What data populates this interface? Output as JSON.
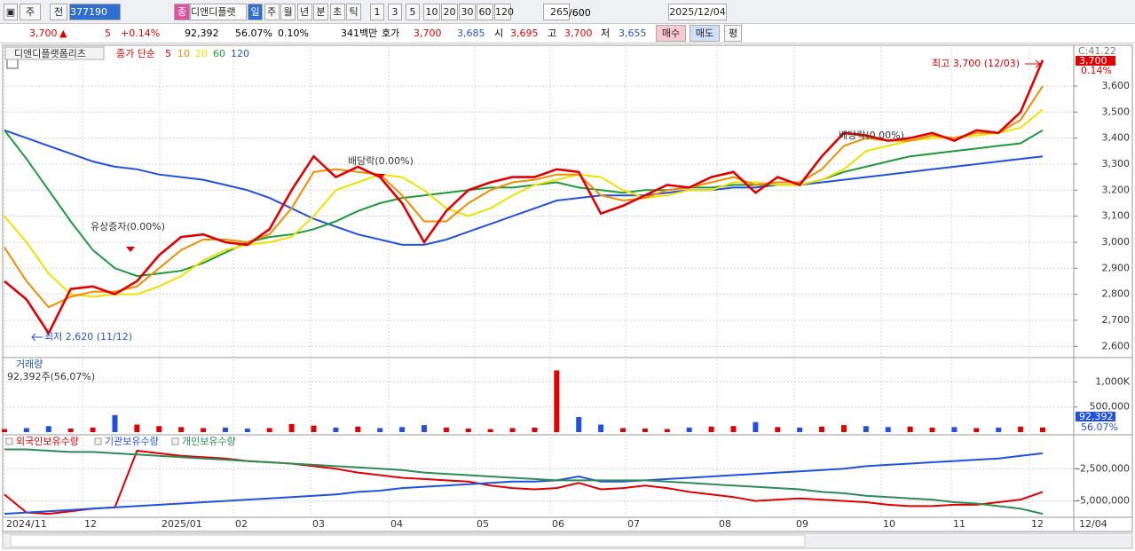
{
  "toolbar": {
    "market": "주",
    "prev": "전",
    "code": "377190",
    "badge": "종",
    "name": "디앤디플랫",
    "intervals": [
      "일",
      "주",
      "월",
      "년",
      "분",
      "초",
      "틱"
    ],
    "counts": [
      "1",
      "3",
      "5",
      "10",
      "20",
      "30",
      "60",
      "120"
    ],
    "bars": "265",
    "bars_max": "/600",
    "date": "2025/12/04"
  },
  "quote": {
    "price": "3,700",
    "arrow": "▲",
    "change": "5",
    "pct": "+0.14%",
    "volume": "92,392",
    "vol_ratio": "56.07%",
    "turnover": "0.10%",
    "amount": "341백만",
    "hoga": "호가",
    "ask": "3,700",
    "bid": "3,685",
    "open_label": "시",
    "open": "3,695",
    "high_label": "고",
    "high": "3,700",
    "low_label": "저",
    "low": "3,655",
    "buy": "매수",
    "sell": "매도",
    "avg": "평"
  },
  "chart_data": [
    {
      "type": "line",
      "title": "디앤디플랫폼리츠",
      "legend_prefix": "종가 단순",
      "corner_label": "C:41.22",
      "last_label": "3,700",
      "change_label": "0.14%",
      "annotations": [
        "최고 3,700 (12/03)",
        "최저 2,620 (11/12)",
        "유상증자(0.00%)",
        "배당락(0.00%)",
        "배당락(0.00%)"
      ],
      "ylim": [
        2560,
        3750
      ],
      "yticks": [
        {
          "value": 2600,
          "label": "2,600"
        },
        {
          "value": 2700,
          "label": "2,700"
        },
        {
          "value": 2800,
          "label": "2,800"
        },
        {
          "value": 2900,
          "label": "2,900"
        },
        {
          "value": 3000,
          "label": "3,000"
        },
        {
          "value": 3100,
          "label": "3,100"
        },
        {
          "value": 3200,
          "label": "3,200"
        },
        {
          "value": 3300,
          "label": "3,300"
        },
        {
          "value": 3400,
          "label": "3,400"
        },
        {
          "value": 3500,
          "label": "3,500"
        },
        {
          "value": 3600,
          "label": "3,600"
        }
      ],
      "series": [
        {
          "name": "120",
          "color": "#2050e0",
          "values": [
            3430,
            3400,
            3370,
            3340,
            3310,
            3290,
            3280,
            3260,
            3250,
            3240,
            3220,
            3200,
            3170,
            3130,
            3090,
            3060,
            3030,
            3010,
            2990,
            2990,
            3010,
            3040,
            3070,
            3100,
            3130,
            3160,
            3170,
            3180,
            3180,
            3180,
            3190,
            3200,
            3200,
            3210,
            3210,
            3220,
            3220,
            3230,
            3240,
            3250,
            3260,
            3270,
            3280,
            3290,
            3300,
            3310,
            3320,
            3330
          ]
        },
        {
          "name": "60",
          "color": "#1f9a3a",
          "values": [
            3430,
            3320,
            3200,
            3080,
            2970,
            2900,
            2870,
            2880,
            2890,
            2920,
            2960,
            3000,
            3020,
            3030,
            3050,
            3080,
            3120,
            3150,
            3170,
            3180,
            3190,
            3200,
            3210,
            3210,
            3220,
            3230,
            3210,
            3200,
            3190,
            3200,
            3200,
            3210,
            3210,
            3220,
            3220,
            3220,
            3220,
            3240,
            3270,
            3290,
            3310,
            3330,
            3340,
            3350,
            3360,
            3370,
            3380,
            3430
          ]
        },
        {
          "name": "20",
          "color": "#f0e000",
          "values": [
            3100,
            3000,
            2880,
            2800,
            2790,
            2800,
            2800,
            2830,
            2870,
            2930,
            2970,
            2990,
            3000,
            3020,
            3100,
            3200,
            3230,
            3260,
            3250,
            3200,
            3130,
            3100,
            3130,
            3180,
            3220,
            3240,
            3260,
            3250,
            3200,
            3170,
            3180,
            3200,
            3200,
            3230,
            3230,
            3220,
            3220,
            3240,
            3280,
            3350,
            3370,
            3390,
            3400,
            3400,
            3410,
            3420,
            3440,
            3510
          ]
        },
        {
          "name": "10",
          "color": "#f08c00",
          "values": [
            2980,
            2850,
            2750,
            2790,
            2810,
            2810,
            2830,
            2900,
            2970,
            3010,
            3010,
            3000,
            3030,
            3130,
            3270,
            3280,
            3270,
            3260,
            3180,
            3080,
            3080,
            3150,
            3200,
            3230,
            3240,
            3260,
            3260,
            3180,
            3160,
            3170,
            3200,
            3210,
            3230,
            3250,
            3220,
            3230,
            3230,
            3280,
            3370,
            3400,
            3390,
            3390,
            3410,
            3400,
            3420,
            3420,
            3470,
            3600
          ]
        },
        {
          "name": "5",
          "color": "#e00000",
          "values": [
            2850,
            2780,
            2650,
            2820,
            2830,
            2800,
            2850,
            2950,
            3020,
            3030,
            3000,
            2990,
            3050,
            3200,
            3330,
            3250,
            3290,
            3250,
            3150,
            3000,
            3120,
            3200,
            3230,
            3250,
            3250,
            3280,
            3270,
            3110,
            3140,
            3180,
            3220,
            3210,
            3250,
            3270,
            3190,
            3250,
            3220,
            3330,
            3420,
            3410,
            3390,
            3400,
            3420,
            3390,
            3430,
            3420,
            3500,
            3700
          ]
        }
      ]
    },
    {
      "type": "bar",
      "title": "거래량",
      "subtitle": "92,392주(56,07%)",
      "last_label": "92,392",
      "ratio_label": "56.07%",
      "ylim": [
        0,
        1450000
      ],
      "yticks": [
        {
          "value": 500000,
          "label": "500,000"
        },
        {
          "value": 1000000,
          "label": "1,000K"
        }
      ],
      "values": [
        60000,
        80000,
        120000,
        70000,
        90000,
        340000,
        150000,
        120000,
        100000,
        80000,
        90000,
        70000,
        80000,
        160000,
        130000,
        90000,
        110000,
        80000,
        100000,
        140000,
        90000,
        70000,
        60000,
        80000,
        90000,
        1230000,
        300000,
        150000,
        80000,
        70000,
        60000,
        90000,
        110000,
        120000,
        200000,
        100000,
        90000,
        110000,
        140000,
        120000,
        100000,
        110000,
        90000,
        100000,
        80000,
        90000,
        110000,
        92392
      ]
    },
    {
      "type": "line",
      "ylim": [
        -6200000,
        0
      ],
      "yticks": [
        {
          "value": -5000000,
          "label": "-5,000,000"
        },
        {
          "value": -2500000,
          "label": "-2,500,000"
        }
      ],
      "series": [
        {
          "name": "외국인보유수량",
          "color": "#e00000",
          "values": [
            -4500000,
            -5900000,
            -6000000,
            -5800000,
            -5600000,
            -5500000,
            -1100000,
            -1300000,
            -1500000,
            -1600000,
            -1700000,
            -1900000,
            -2000000,
            -2100000,
            -2300000,
            -2500000,
            -2800000,
            -3000000,
            -3200000,
            -3300000,
            -3400000,
            -3500000,
            -3800000,
            -4000000,
            -4100000,
            -4000000,
            -3600000,
            -4100000,
            -4000000,
            -3800000,
            -4000000,
            -4300000,
            -4500000,
            -4700000,
            -5000000,
            -4900000,
            -4800000,
            -4900000,
            -5000000,
            -5100000,
            -5300000,
            -5400000,
            -5400000,
            -5300000,
            -5300000,
            -5100000,
            -4900000,
            -4300000
          ]
        },
        {
          "name": "기관보유수량",
          "color": "#2050e0",
          "values": [
            -6000000,
            -5900000,
            -5800000,
            -5700000,
            -5600000,
            -5500000,
            -5400000,
            -5300000,
            -5200000,
            -5100000,
            -5000000,
            -4900000,
            -4800000,
            -4700000,
            -4600000,
            -4500000,
            -4300000,
            -4200000,
            -4000000,
            -3900000,
            -3800000,
            -3700000,
            -3600000,
            -3500000,
            -3500000,
            -3400000,
            -3100000,
            -3500000,
            -3500000,
            -3400000,
            -3300000,
            -3200000,
            -3100000,
            -3000000,
            -2900000,
            -2800000,
            -2700000,
            -2600000,
            -2500000,
            -2300000,
            -2200000,
            -2100000,
            -2000000,
            -1900000,
            -1800000,
            -1700000,
            -1500000,
            -1300000
          ]
        },
        {
          "name": "개인보유수량",
          "color": "#2e8b57",
          "values": [
            -1000000,
            -1000000,
            -1100000,
            -1200000,
            -1200000,
            -1300000,
            -1400000,
            -1500000,
            -1600000,
            -1700000,
            -1800000,
            -1900000,
            -2000000,
            -2100000,
            -2200000,
            -2300000,
            -2400000,
            -2500000,
            -2600000,
            -2800000,
            -2900000,
            -3000000,
            -3100000,
            -3200000,
            -3300000,
            -3400000,
            -3400000,
            -3400000,
            -3400000,
            -3400000,
            -3500000,
            -3600000,
            -3700000,
            -3800000,
            -3900000,
            -4000000,
            -4100000,
            -4300000,
            -4400000,
            -4600000,
            -4700000,
            -4800000,
            -4900000,
            -5100000,
            -5200000,
            -5400000,
            -5600000,
            -6000000
          ]
        }
      ]
    }
  ],
  "xaxis": {
    "labels": [
      "2024/11",
      "12",
      "2025/01",
      "02",
      "03",
      "04",
      "05",
      "06",
      "07",
      "08",
      "09",
      "10",
      "11",
      "12"
    ],
    "end": "12/04"
  }
}
